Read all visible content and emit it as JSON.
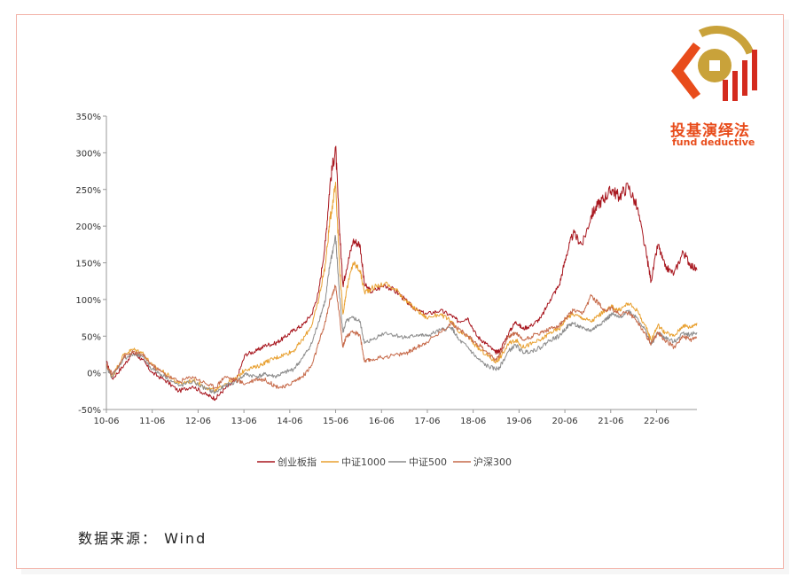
{
  "brand": {
    "name_cn": "投基演绎法",
    "name_en": "fund deductive",
    "colors": {
      "orange": "#e84c1b",
      "red": "#d42b1e",
      "gold": "#c9a23a"
    }
  },
  "source_note": "数据来源： Wind",
  "chart_data": {
    "type": "line",
    "title": "",
    "xlabel": "",
    "ylabel": "",
    "ylim": [
      -50,
      350
    ],
    "yticks": [
      -50,
      0,
      50,
      100,
      150,
      200,
      250,
      300,
      350
    ],
    "ytick_labels": [
      "-50%",
      "0%",
      "50%",
      "100%",
      "150%",
      "200%",
      "250%",
      "300%",
      "350%"
    ],
    "x_tick_labels": [
      "10-06",
      "11-06",
      "12-06",
      "13-06",
      "14-06",
      "15-06",
      "16-06",
      "17-06",
      "18-06",
      "19-06",
      "20-06",
      "21-06",
      "22-06"
    ],
    "x_range": [
      2010.42,
      2023.3
    ],
    "legend_position": "bottom",
    "grid": false,
    "series": [
      {
        "name": "创业板指",
        "color": "#a8171f",
        "points": [
          [
            2010.42,
            15
          ],
          [
            2010.55,
            -8
          ],
          [
            2010.8,
            10
          ],
          [
            2011.0,
            28
          ],
          [
            2011.2,
            18
          ],
          [
            2011.42,
            0
          ],
          [
            2011.7,
            -10
          ],
          [
            2012.0,
            -25
          ],
          [
            2012.3,
            -18
          ],
          [
            2012.6,
            -30
          ],
          [
            2012.8,
            -35
          ],
          [
            2013.0,
            -22
          ],
          [
            2013.25,
            -10
          ],
          [
            2013.45,
            25
          ],
          [
            2013.7,
            30
          ],
          [
            2013.9,
            38
          ],
          [
            2014.1,
            40
          ],
          [
            2014.3,
            48
          ],
          [
            2014.5,
            58
          ],
          [
            2014.7,
            65
          ],
          [
            2014.9,
            80
          ],
          [
            2015.05,
            110
          ],
          [
            2015.2,
            180
          ],
          [
            2015.3,
            260
          ],
          [
            2015.42,
            308
          ],
          [
            2015.5,
            200
          ],
          [
            2015.58,
            120
          ],
          [
            2015.65,
            140
          ],
          [
            2015.8,
            180
          ],
          [
            2015.95,
            175
          ],
          [
            2016.05,
            120
          ],
          [
            2016.2,
            110
          ],
          [
            2016.5,
            120
          ],
          [
            2016.8,
            108
          ],
          [
            2017.0,
            95
          ],
          [
            2017.2,
            85
          ],
          [
            2017.4,
            80
          ],
          [
            2017.7,
            85
          ],
          [
            2017.95,
            78
          ],
          [
            2018.1,
            70
          ],
          [
            2018.3,
            75
          ],
          [
            2018.5,
            50
          ],
          [
            2018.7,
            40
          ],
          [
            2018.9,
            28
          ],
          [
            2019.0,
            30
          ],
          [
            2019.2,
            55
          ],
          [
            2019.35,
            70
          ],
          [
            2019.5,
            60
          ],
          [
            2019.7,
            65
          ],
          [
            2019.9,
            75
          ],
          [
            2020.1,
            100
          ],
          [
            2020.3,
            120
          ],
          [
            2020.45,
            160
          ],
          [
            2020.6,
            190
          ],
          [
            2020.8,
            175
          ],
          [
            2021.0,
            215
          ],
          [
            2021.15,
            230
          ],
          [
            2021.3,
            240
          ],
          [
            2021.45,
            250
          ],
          [
            2021.6,
            240
          ],
          [
            2021.8,
            255
          ],
          [
            2022.0,
            225
          ],
          [
            2022.2,
            160
          ],
          [
            2022.3,
            125
          ],
          [
            2022.45,
            175
          ],
          [
            2022.6,
            145
          ],
          [
            2022.8,
            135
          ],
          [
            2023.0,
            165
          ],
          [
            2023.15,
            148
          ],
          [
            2023.3,
            140
          ]
        ]
      },
      {
        "name": "中证1000",
        "color": "#e8a030",
        "points": [
          [
            2010.42,
            10
          ],
          [
            2010.55,
            -5
          ],
          [
            2010.8,
            25
          ],
          [
            2011.0,
            32
          ],
          [
            2011.2,
            28
          ],
          [
            2011.42,
            10
          ],
          [
            2011.7,
            0
          ],
          [
            2012.0,
            -15
          ],
          [
            2012.3,
            -10
          ],
          [
            2012.6,
            -20
          ],
          [
            2012.8,
            -25
          ],
          [
            2013.0,
            -15
          ],
          [
            2013.25,
            -8
          ],
          [
            2013.45,
            5
          ],
          [
            2013.7,
            8
          ],
          [
            2013.9,
            15
          ],
          [
            2014.1,
            20
          ],
          [
            2014.3,
            25
          ],
          [
            2014.5,
            30
          ],
          [
            2014.7,
            45
          ],
          [
            2014.9,
            65
          ],
          [
            2015.05,
            100
          ],
          [
            2015.2,
            150
          ],
          [
            2015.3,
            210
          ],
          [
            2015.42,
            260
          ],
          [
            2015.5,
            150
          ],
          [
            2015.58,
            80
          ],
          [
            2015.65,
            110
          ],
          [
            2015.8,
            150
          ],
          [
            2015.95,
            140
          ],
          [
            2016.05,
            110
          ],
          [
            2016.2,
            115
          ],
          [
            2016.5,
            122
          ],
          [
            2016.8,
            110
          ],
          [
            2017.0,
            95
          ],
          [
            2017.2,
            85
          ],
          [
            2017.4,
            75
          ],
          [
            2017.7,
            80
          ],
          [
            2017.95,
            70
          ],
          [
            2018.1,
            55
          ],
          [
            2018.3,
            50
          ],
          [
            2018.5,
            35
          ],
          [
            2018.7,
            25
          ],
          [
            2018.9,
            15
          ],
          [
            2019.0,
            20
          ],
          [
            2019.2,
            40
          ],
          [
            2019.35,
            45
          ],
          [
            2019.5,
            35
          ],
          [
            2019.7,
            40
          ],
          [
            2019.9,
            45
          ],
          [
            2020.1,
            55
          ],
          [
            2020.3,
            60
          ],
          [
            2020.45,
            75
          ],
          [
            2020.6,
            80
          ],
          [
            2020.8,
            75
          ],
          [
            2021.0,
            70
          ],
          [
            2021.15,
            78
          ],
          [
            2021.3,
            85
          ],
          [
            2021.45,
            90
          ],
          [
            2021.6,
            85
          ],
          [
            2021.8,
            95
          ],
          [
            2022.0,
            85
          ],
          [
            2022.2,
            60
          ],
          [
            2022.3,
            45
          ],
          [
            2022.45,
            65
          ],
          [
            2022.6,
            55
          ],
          [
            2022.8,
            50
          ],
          [
            2023.0,
            65
          ],
          [
            2023.15,
            62
          ],
          [
            2023.3,
            68
          ]
        ]
      },
      {
        "name": "中证500",
        "color": "#8c8c8c",
        "points": [
          [
            2010.42,
            8
          ],
          [
            2010.55,
            -6
          ],
          [
            2010.8,
            20
          ],
          [
            2011.0,
            25
          ],
          [
            2011.2,
            22
          ],
          [
            2011.42,
            5
          ],
          [
            2011.7,
            -5
          ],
          [
            2012.0,
            -18
          ],
          [
            2012.3,
            -12
          ],
          [
            2012.6,
            -22
          ],
          [
            2012.8,
            -27
          ],
          [
            2013.0,
            -18
          ],
          [
            2013.25,
            -12
          ],
          [
            2013.45,
            -2
          ],
          [
            2013.7,
            -5
          ],
          [
            2013.9,
            -2
          ],
          [
            2014.1,
            -5
          ],
          [
            2014.3,
            0
          ],
          [
            2014.5,
            5
          ],
          [
            2014.7,
            20
          ],
          [
            2014.9,
            40
          ],
          [
            2015.05,
            70
          ],
          [
            2015.2,
            100
          ],
          [
            2015.3,
            150
          ],
          [
            2015.42,
            185
          ],
          [
            2015.5,
            110
          ],
          [
            2015.58,
            55
          ],
          [
            2015.65,
            70
          ],
          [
            2015.8,
            75
          ],
          [
            2015.95,
            70
          ],
          [
            2016.05,
            40
          ],
          [
            2016.2,
            45
          ],
          [
            2016.5,
            55
          ],
          [
            2016.8,
            50
          ],
          [
            2017.0,
            48
          ],
          [
            2017.2,
            52
          ],
          [
            2017.4,
            50
          ],
          [
            2017.7,
            58
          ],
          [
            2017.95,
            62
          ],
          [
            2018.1,
            45
          ],
          [
            2018.3,
            35
          ],
          [
            2018.5,
            20
          ],
          [
            2018.7,
            10
          ],
          [
            2018.9,
            5
          ],
          [
            2019.0,
            8
          ],
          [
            2019.2,
            30
          ],
          [
            2019.35,
            38
          ],
          [
            2019.5,
            28
          ],
          [
            2019.7,
            30
          ],
          [
            2019.9,
            35
          ],
          [
            2020.1,
            45
          ],
          [
            2020.3,
            50
          ],
          [
            2020.45,
            62
          ],
          [
            2020.6,
            68
          ],
          [
            2020.8,
            60
          ],
          [
            2021.0,
            58
          ],
          [
            2021.15,
            65
          ],
          [
            2021.3,
            72
          ],
          [
            2021.45,
            80
          ],
          [
            2021.6,
            75
          ],
          [
            2021.8,
            85
          ],
          [
            2022.0,
            75
          ],
          [
            2022.2,
            55
          ],
          [
            2022.3,
            38
          ],
          [
            2022.45,
            55
          ],
          [
            2022.6,
            48
          ],
          [
            2022.8,
            42
          ],
          [
            2023.0,
            55
          ],
          [
            2023.15,
            52
          ],
          [
            2023.3,
            55
          ]
        ]
      },
      {
        "name": "沪深300",
        "color": "#c66a4a",
        "points": [
          [
            2010.42,
            10
          ],
          [
            2010.55,
            -2
          ],
          [
            2010.8,
            22
          ],
          [
            2011.0,
            28
          ],
          [
            2011.2,
            25
          ],
          [
            2011.42,
            10
          ],
          [
            2011.7,
            -2
          ],
          [
            2012.0,
            -12
          ],
          [
            2012.3,
            -5
          ],
          [
            2012.6,
            -15
          ],
          [
            2012.8,
            -20
          ],
          [
            2013.0,
            -5
          ],
          [
            2013.25,
            -10
          ],
          [
            2013.45,
            -15
          ],
          [
            2013.7,
            -8
          ],
          [
            2013.9,
            -10
          ],
          [
            2014.1,
            -18
          ],
          [
            2014.3,
            -20
          ],
          [
            2014.5,
            -12
          ],
          [
            2014.7,
            -5
          ],
          [
            2014.9,
            10
          ],
          [
            2015.05,
            40
          ],
          [
            2015.2,
            70
          ],
          [
            2015.3,
            100
          ],
          [
            2015.42,
            118
          ],
          [
            2015.5,
            80
          ],
          [
            2015.58,
            35
          ],
          [
            2015.65,
            50
          ],
          [
            2015.8,
            55
          ],
          [
            2015.95,
            52
          ],
          [
            2016.05,
            15
          ],
          [
            2016.2,
            18
          ],
          [
            2016.5,
            22
          ],
          [
            2016.8,
            25
          ],
          [
            2017.0,
            28
          ],
          [
            2017.2,
            35
          ],
          [
            2017.4,
            42
          ],
          [
            2017.7,
            55
          ],
          [
            2017.95,
            68
          ],
          [
            2018.1,
            60
          ],
          [
            2018.3,
            50
          ],
          [
            2018.5,
            40
          ],
          [
            2018.7,
            30
          ],
          [
            2018.9,
            18
          ],
          [
            2019.0,
            25
          ],
          [
            2019.2,
            50
          ],
          [
            2019.35,
            55
          ],
          [
            2019.5,
            45
          ],
          [
            2019.7,
            50
          ],
          [
            2019.9,
            55
          ],
          [
            2020.1,
            60
          ],
          [
            2020.3,
            65
          ],
          [
            2020.45,
            75
          ],
          [
            2020.6,
            85
          ],
          [
            2020.8,
            80
          ],
          [
            2021.0,
            105
          ],
          [
            2021.15,
            95
          ],
          [
            2021.3,
            85
          ],
          [
            2021.45,
            88
          ],
          [
            2021.6,
            80
          ],
          [
            2021.8,
            82
          ],
          [
            2022.0,
            70
          ],
          [
            2022.2,
            50
          ],
          [
            2022.3,
            40
          ],
          [
            2022.45,
            55
          ],
          [
            2022.6,
            45
          ],
          [
            2022.8,
            35
          ],
          [
            2023.0,
            50
          ],
          [
            2023.15,
            45
          ],
          [
            2023.3,
            48
          ]
        ]
      }
    ]
  }
}
